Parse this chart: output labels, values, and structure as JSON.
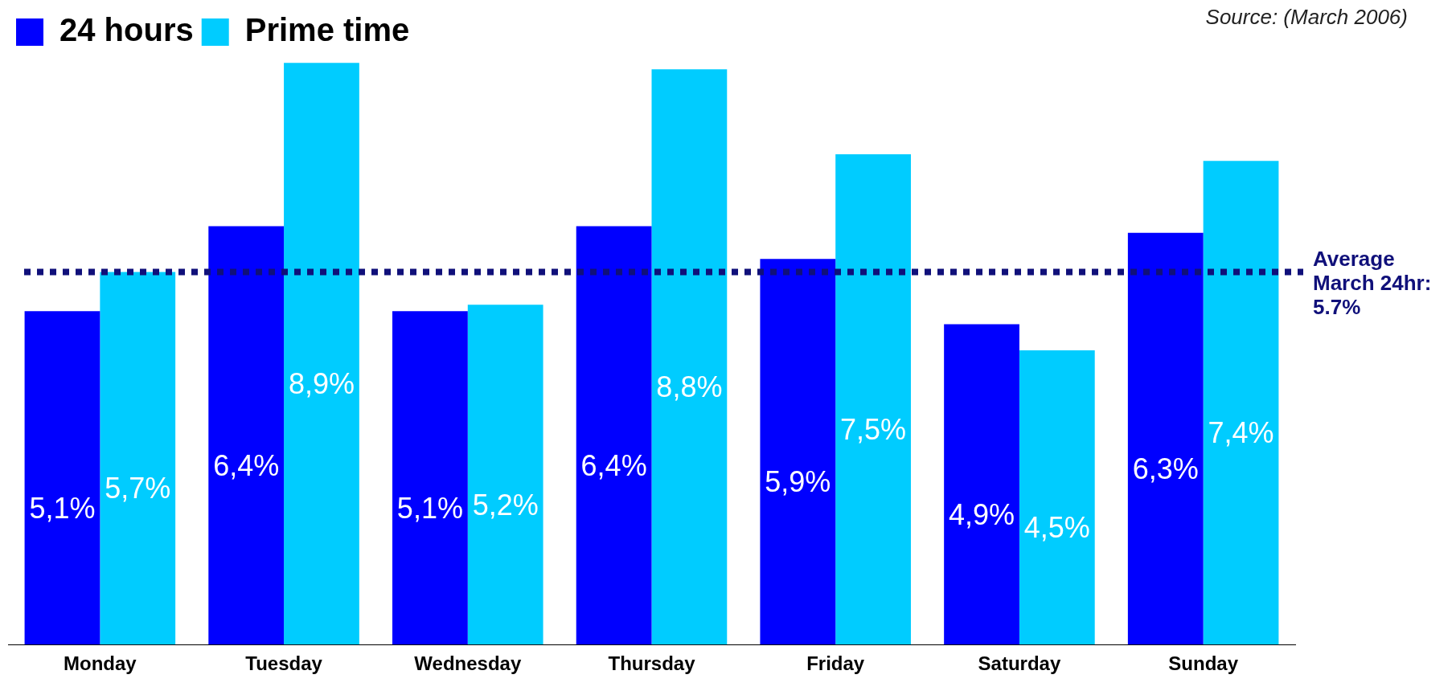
{
  "chart_data": {
    "type": "bar",
    "categories": [
      "Monday",
      "Tuesday",
      "Wednesday",
      "Thursday",
      "Friday",
      "Saturday",
      "Sunday"
    ],
    "series": [
      {
        "name": "24 hours",
        "color": "#0000ff",
        "values": [
          5.1,
          6.4,
          5.1,
          6.4,
          5.9,
          4.9,
          6.3
        ],
        "value_labels": [
          "5,1%",
          "6,4%",
          "5,1%",
          "6,4%",
          "5,9%",
          "4,9%",
          "6,3%"
        ]
      },
      {
        "name": "Prime time",
        "color": "#00ccff",
        "values": [
          5.7,
          8.9,
          5.2,
          8.8,
          7.5,
          4.5,
          7.4
        ],
        "value_labels": [
          "5,7%",
          "8,9%",
          "5,2%",
          "8,8%",
          "7,5%",
          "4,5%",
          "7,4%"
        ]
      }
    ],
    "ref_lines": [
      {
        "axis": "y",
        "value": 5.7,
        "label": "Average March 24hr: 5.7%",
        "color": "#10107a",
        "line_style": "dotted"
      }
    ],
    "annotations": [
      "Source: (March 2006)"
    ],
    "legend": "top left",
    "grid": false
  }
}
